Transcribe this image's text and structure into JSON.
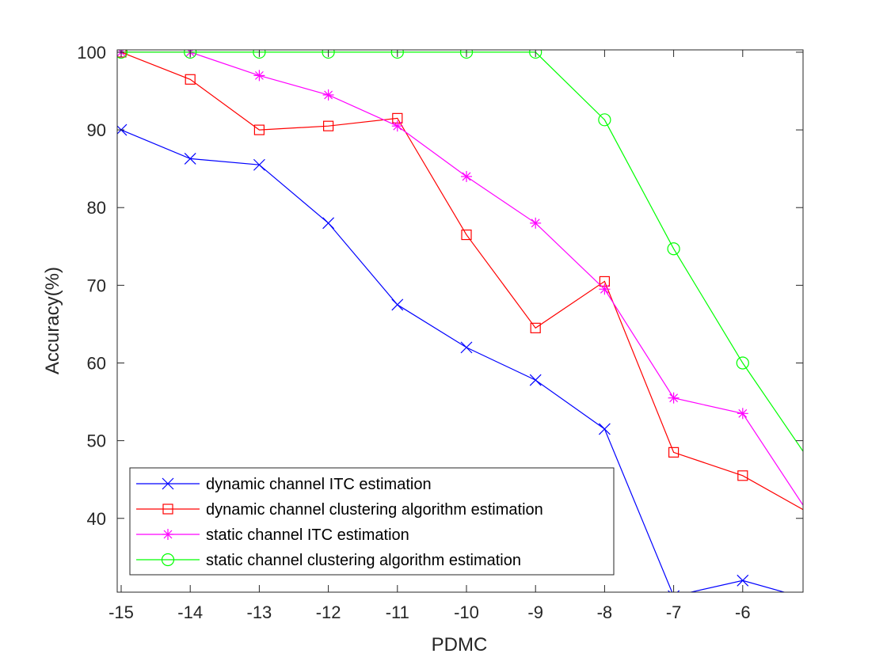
{
  "chart_data": {
    "type": "line",
    "title": "",
    "xlabel": "PDMC",
    "ylabel": "Accuracy(%)",
    "xlim": [
      -15,
      -5.4
    ],
    "ylim": [
      30.5,
      100.3
    ],
    "x_ticks": [
      -15,
      -14,
      -13,
      -12,
      -11,
      -10,
      -9,
      -8,
      -7,
      -6
    ],
    "y_ticks": [
      40,
      50,
      60,
      70,
      80,
      90,
      100
    ],
    "grid": false,
    "box": true,
    "legend_position": "bottom-left",
    "x": [
      -15,
      -14,
      -13,
      -12,
      -11,
      -10,
      -9,
      -8,
      -7,
      -6,
      -5
    ],
    "series": [
      {
        "name": "dynamic channel ITC estimation",
        "color": "#0000ff",
        "marker": "x",
        "values": [
          90,
          86.3,
          85.5,
          78,
          67.5,
          62,
          57.8,
          51.5,
          30,
          32,
          29.5
        ]
      },
      {
        "name": "dynamic channel clustering algorithm estimation",
        "color": "#ff0000",
        "marker": "square",
        "values": [
          100,
          96.5,
          90,
          90.5,
          91.5,
          76.5,
          64.5,
          70.5,
          48.5,
          45.5,
          40.5
        ]
      },
      {
        "name": "static channel ITC estimation",
        "color": "#ff00ff",
        "marker": "asterisk",
        "values": [
          100,
          100,
          97,
          94.5,
          90.5,
          84,
          78,
          69.5,
          55.5,
          53.5,
          40
        ]
      },
      {
        "name": "static channel clustering algorithm estimation",
        "color": "#00ff00",
        "marker": "circle",
        "values": [
          100,
          100,
          100,
          100,
          100,
          100,
          100,
          91.3,
          74.7,
          60,
          47
        ]
      }
    ]
  }
}
